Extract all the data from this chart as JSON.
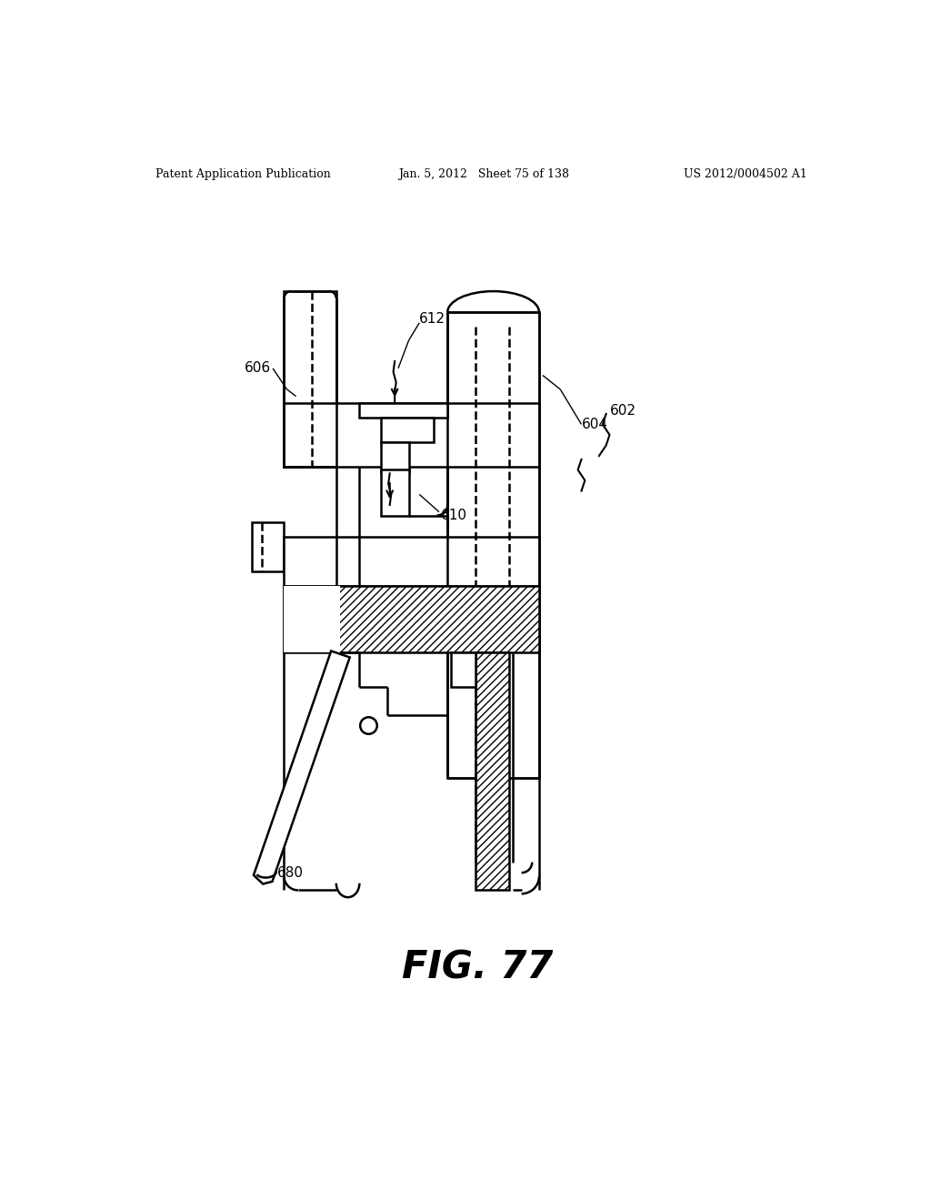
{
  "header_left": "Patent Application Publication",
  "header_center": "Jan. 5, 2012   Sheet 75 of 138",
  "header_right": "US 2012/0004502 A1",
  "fig_label": "FIG. 77",
  "bg_color": "#ffffff",
  "line_color": "#000000",
  "lw_main": 1.8,
  "lw_thin": 1.0,
  "label_fontsize": 11,
  "header_fontsize": 9,
  "title_fontsize": 30
}
